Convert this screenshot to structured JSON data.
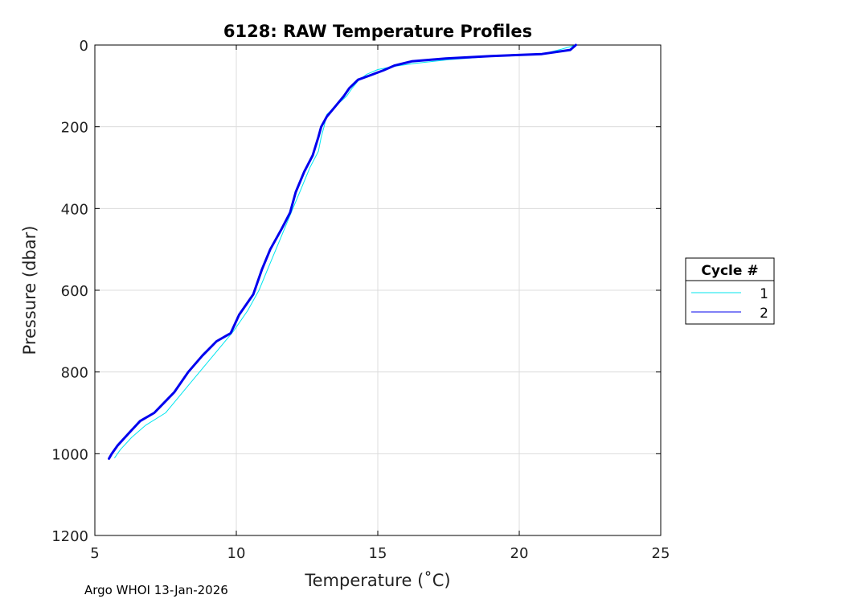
{
  "chart_data": {
    "type": "line",
    "title": "6128: RAW Temperature Profiles",
    "xlabel": "Temperature (˚C)",
    "ylabel": "Pressure (dbar)",
    "xlim": [
      5,
      25
    ],
    "ylim": [
      0,
      1200
    ],
    "y_reversed": true,
    "grid": true,
    "x_ticks": [
      5,
      10,
      15,
      20,
      25
    ],
    "y_ticks": [
      0,
      200,
      400,
      600,
      800,
      1000,
      1200
    ],
    "legend": {
      "title": "Cycle #",
      "placement": "outside-right"
    },
    "series": [
      {
        "name": "1",
        "color": "#00e5ee",
        "points": [
          [
            22.0,
            0
          ],
          [
            21.5,
            10
          ],
          [
            20.8,
            22
          ],
          [
            19.0,
            28
          ],
          [
            17.5,
            36
          ],
          [
            16.3,
            45
          ],
          [
            15.6,
            52
          ],
          [
            15.0,
            60
          ],
          [
            14.6,
            72
          ],
          [
            14.3,
            88
          ],
          [
            14.1,
            105
          ],
          [
            13.9,
            125
          ],
          [
            13.5,
            150
          ],
          [
            13.2,
            170
          ],
          [
            13.1,
            200
          ],
          [
            13.0,
            225
          ],
          [
            12.9,
            260
          ],
          [
            12.6,
            300
          ],
          [
            12.3,
            350
          ],
          [
            12.0,
            400
          ],
          [
            11.7,
            450
          ],
          [
            11.4,
            500
          ],
          [
            11.1,
            550
          ],
          [
            10.8,
            600
          ],
          [
            10.4,
            650
          ],
          [
            9.9,
            700
          ],
          [
            9.3,
            750
          ],
          [
            8.7,
            800
          ],
          [
            8.1,
            850
          ],
          [
            7.5,
            900
          ],
          [
            6.8,
            930
          ],
          [
            6.3,
            960
          ],
          [
            5.9,
            990
          ],
          [
            5.7,
            1010
          ]
        ]
      },
      {
        "name": "2",
        "color": "#0000ee",
        "points": [
          [
            22.0,
            0
          ],
          [
            21.8,
            12
          ],
          [
            20.8,
            22
          ],
          [
            19.0,
            27
          ],
          [
            17.4,
            33
          ],
          [
            16.2,
            40
          ],
          [
            15.6,
            50
          ],
          [
            15.2,
            62
          ],
          [
            14.7,
            75
          ],
          [
            14.3,
            85
          ],
          [
            14.0,
            105
          ],
          [
            13.8,
            125
          ],
          [
            13.5,
            150
          ],
          [
            13.2,
            175
          ],
          [
            13.0,
            200
          ],
          [
            12.9,
            225
          ],
          [
            12.7,
            270
          ],
          [
            12.4,
            310
          ],
          [
            12.1,
            360
          ],
          [
            11.9,
            410
          ],
          [
            11.6,
            450
          ],
          [
            11.2,
            500
          ],
          [
            10.9,
            550
          ],
          [
            10.6,
            610
          ],
          [
            10.1,
            660
          ],
          [
            9.8,
            705
          ],
          [
            9.3,
            725
          ],
          [
            8.8,
            760
          ],
          [
            8.3,
            800
          ],
          [
            7.8,
            850
          ],
          [
            7.1,
            900
          ],
          [
            6.6,
            920
          ],
          [
            6.2,
            950
          ],
          [
            5.8,
            980
          ],
          [
            5.6,
            1000
          ],
          [
            5.5,
            1012
          ]
        ]
      }
    ]
  },
  "footer": "Argo WHOI 13-Jan-2026"
}
